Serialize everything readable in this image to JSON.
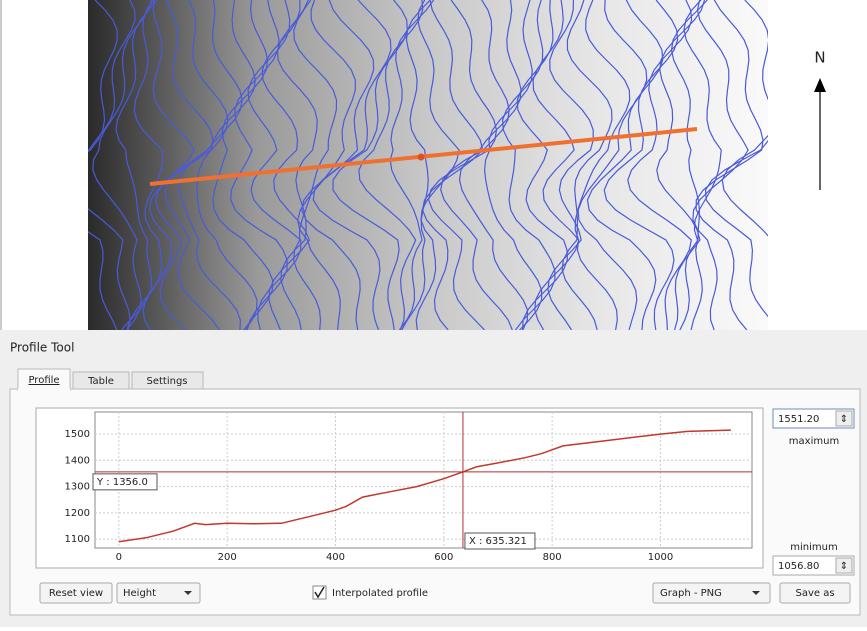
{
  "map": {
    "north_label": "N"
  },
  "panel": {
    "title": "Profile Tool",
    "tabs": [
      "Profile",
      "Table",
      "Settings"
    ],
    "maximum_value": "1551.20",
    "maximum_label": "maximum",
    "minimum_value": "1056.80",
    "minimum_label": "minimum",
    "buttons": {
      "reset": "Reset view",
      "mode": "Height",
      "interpolated": "Interpolated profile",
      "format": "Graph - PNG",
      "save": "Save as"
    }
  },
  "chart_data": {
    "type": "line",
    "x": [
      0,
      50,
      100,
      140,
      160,
      200,
      250,
      300,
      350,
      400,
      420,
      450,
      500,
      550,
      600,
      635,
      660,
      700,
      750,
      780,
      820,
      900,
      1000,
      1050,
      1130
    ],
    "series": [
      {
        "color": "#c0392b",
        "values": [
          1090,
          1105,
          1130,
          1160,
          1155,
          1160,
          1158,
          1160,
          1185,
          1210,
          1225,
          1260,
          1280,
          1300,
          1330,
          1356,
          1375,
          1390,
          1410,
          1425,
          1455,
          1475,
          1500,
          1510,
          1515
        ]
      }
    ],
    "xlim": [
      -44,
      1169
    ],
    "ylim": [
      1066,
      1584
    ],
    "xticks": [
      0,
      200,
      400,
      600,
      800,
      1000
    ],
    "yticks": [
      1100,
      1200,
      1300,
      1400,
      1500
    ],
    "grid": true,
    "crosshair": {
      "x": {
        "value": 635.321,
        "label": "X : 635.321"
      },
      "y": {
        "value": 1356.0,
        "label": "Y : 1356.0"
      }
    }
  }
}
